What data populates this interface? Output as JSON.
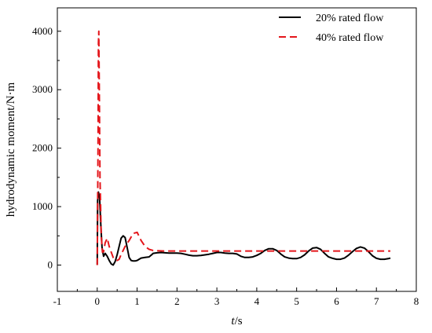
{
  "chart_data": {
    "type": "line",
    "xlabel": "t/s",
    "xlabel_italic": "t",
    "xlabel_unit": "/s",
    "ylabel": "hydrodynamic moment/N·m",
    "xlim": [
      -1,
      8
    ],
    "ylim": [
      -450,
      4400
    ],
    "x_ticks": [
      -1,
      0,
      1,
      2,
      3,
      4,
      5,
      6,
      7,
      8
    ],
    "y_ticks": [
      0,
      1000,
      2000,
      3000,
      4000
    ],
    "grid": false,
    "legend_position": "top-right",
    "series": [
      {
        "name": "20% rated flow",
        "color": "#000000",
        "dash": "solid",
        "x": [
          0.0,
          0.01,
          0.03,
          0.06,
          0.09,
          0.12,
          0.16,
          0.2,
          0.25,
          0.3,
          0.35,
          0.4,
          0.45,
          0.5,
          0.55,
          0.6,
          0.65,
          0.7,
          0.75,
          0.8,
          0.85,
          0.9,
          0.95,
          1.0,
          1.05,
          1.1,
          1.2,
          1.3,
          1.38,
          1.4,
          1.5,
          1.6,
          1.7,
          1.8,
          1.9,
          2.0,
          2.1,
          2.2,
          2.3,
          2.4,
          2.5,
          2.6,
          2.7,
          2.8,
          2.9,
          3.0,
          3.1,
          3.2,
          3.3,
          3.4,
          3.5,
          3.6,
          3.7,
          3.8,
          3.9,
          4.0,
          4.1,
          4.2,
          4.3,
          4.4,
          4.5,
          4.6,
          4.7,
          4.8,
          4.9,
          5.0,
          5.1,
          5.2,
          5.3,
          5.4,
          5.5,
          5.6,
          5.7,
          5.8,
          5.9,
          6.0,
          6.1,
          6.2,
          6.3,
          6.4,
          6.5,
          6.6,
          6.7,
          6.8,
          6.9,
          7.0,
          7.1,
          7.2,
          7.3,
          7.35
        ],
        "y": [
          0,
          1100,
          1250,
          1150,
          700,
          300,
          150,
          200,
          150,
          80,
          20,
          0,
          60,
          180,
          320,
          460,
          500,
          470,
          300,
          130,
          80,
          70,
          70,
          80,
          100,
          120,
          130,
          140,
          185,
          200,
          210,
          215,
          210,
          205,
          205,
          205,
          200,
          185,
          170,
          160,
          160,
          165,
          175,
          185,
          200,
          215,
          215,
          205,
          200,
          200,
          190,
          150,
          130,
          130,
          140,
          165,
          200,
          250,
          280,
          280,
          250,
          190,
          140,
          120,
          110,
          110,
          130,
          175,
          240,
          290,
          300,
          270,
          200,
          140,
          115,
          100,
          100,
          120,
          170,
          230,
          285,
          310,
          290,
          230,
          160,
          115,
          100,
          100,
          110,
          120
        ]
      },
      {
        "name": "40% rated flow",
        "color": "#e4161b",
        "dash": "dashed",
        "x": [
          0.0,
          0.02,
          0.03,
          0.04,
          0.05,
          0.07,
          0.1,
          0.13,
          0.16,
          0.2,
          0.25,
          0.3,
          0.35,
          0.4,
          0.45,
          0.5,
          0.55,
          0.6,
          0.7,
          0.8,
          0.9,
          1.0,
          1.1,
          1.2,
          1.3,
          1.4,
          1.5,
          1.7,
          2.0,
          3.0,
          4.0,
          5.0,
          6.0,
          7.0,
          7.35
        ],
        "y": [
          0,
          2000,
          3800,
          4000,
          3200,
          1500,
          500,
          220,
          230,
          380,
          460,
          320,
          220,
          130,
          90,
          80,
          100,
          180,
          320,
          420,
          540,
          560,
          420,
          320,
          270,
          250,
          245,
          240,
          240,
          240,
          240,
          240,
          240,
          240,
          240
        ]
      }
    ]
  }
}
